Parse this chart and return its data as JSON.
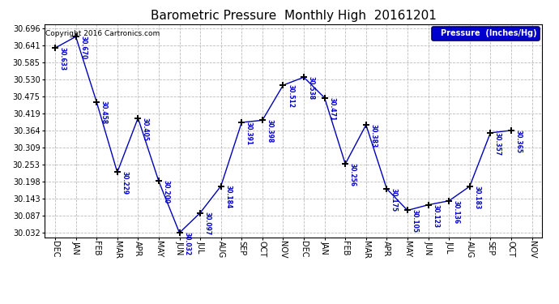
{
  "title": "Barometric Pressure  Monthly High  20161201",
  "months": [
    "DEC",
    "JAN",
    "FEB",
    "MAR",
    "APR",
    "MAY",
    "JUN",
    "JUL",
    "AUG",
    "SEP",
    "OCT",
    "NOV",
    "DEC",
    "JAN",
    "FEB",
    "MAR",
    "APR",
    "MAY",
    "JUN",
    "JUL",
    "AUG",
    "SEP",
    "OCT",
    "NOV"
  ],
  "values": [
    30.633,
    30.67,
    30.458,
    30.229,
    30.405,
    30.2,
    30.032,
    30.097,
    30.184,
    30.391,
    30.398,
    30.512,
    30.538,
    30.471,
    30.256,
    30.383,
    30.175,
    30.105,
    30.123,
    30.136,
    30.183,
    30.357,
    30.365
  ],
  "point_labels": [
    "30.633",
    "30.670",
    "30.458",
    "30.229",
    "30.405",
    "30.200",
    "30.032",
    "30.097",
    "30.184",
    "30.391",
    "30.398",
    "30.512",
    "30.538",
    "30.471",
    "30.256",
    "30.383",
    "30.175",
    "30.105",
    "30.123",
    "30.136",
    "30.183",
    "30.357",
    "30.365"
  ],
  "yticks": [
    30.032,
    30.087,
    30.143,
    30.198,
    30.253,
    30.309,
    30.364,
    30.419,
    30.475,
    30.53,
    30.585,
    30.641,
    30.696
  ],
  "ylim": [
    30.018,
    30.71
  ],
  "xlim": [
    -0.5,
    23.5
  ],
  "line_color": "#0000bb",
  "marker_color": "#000000",
  "bg_color": "#ffffff",
  "grid_color": "#bbbbbb",
  "label_color": "#0000cc",
  "legend_label": "Pressure  (Inches/Hg)",
  "legend_bg": "#0000cc",
  "legend_text_color": "#ffffff",
  "copyright_text": "Copyright 2016 Cartronics.com",
  "title_fontsize": 11,
  "tick_fontsize": 7,
  "point_label_fontsize": 5.5
}
